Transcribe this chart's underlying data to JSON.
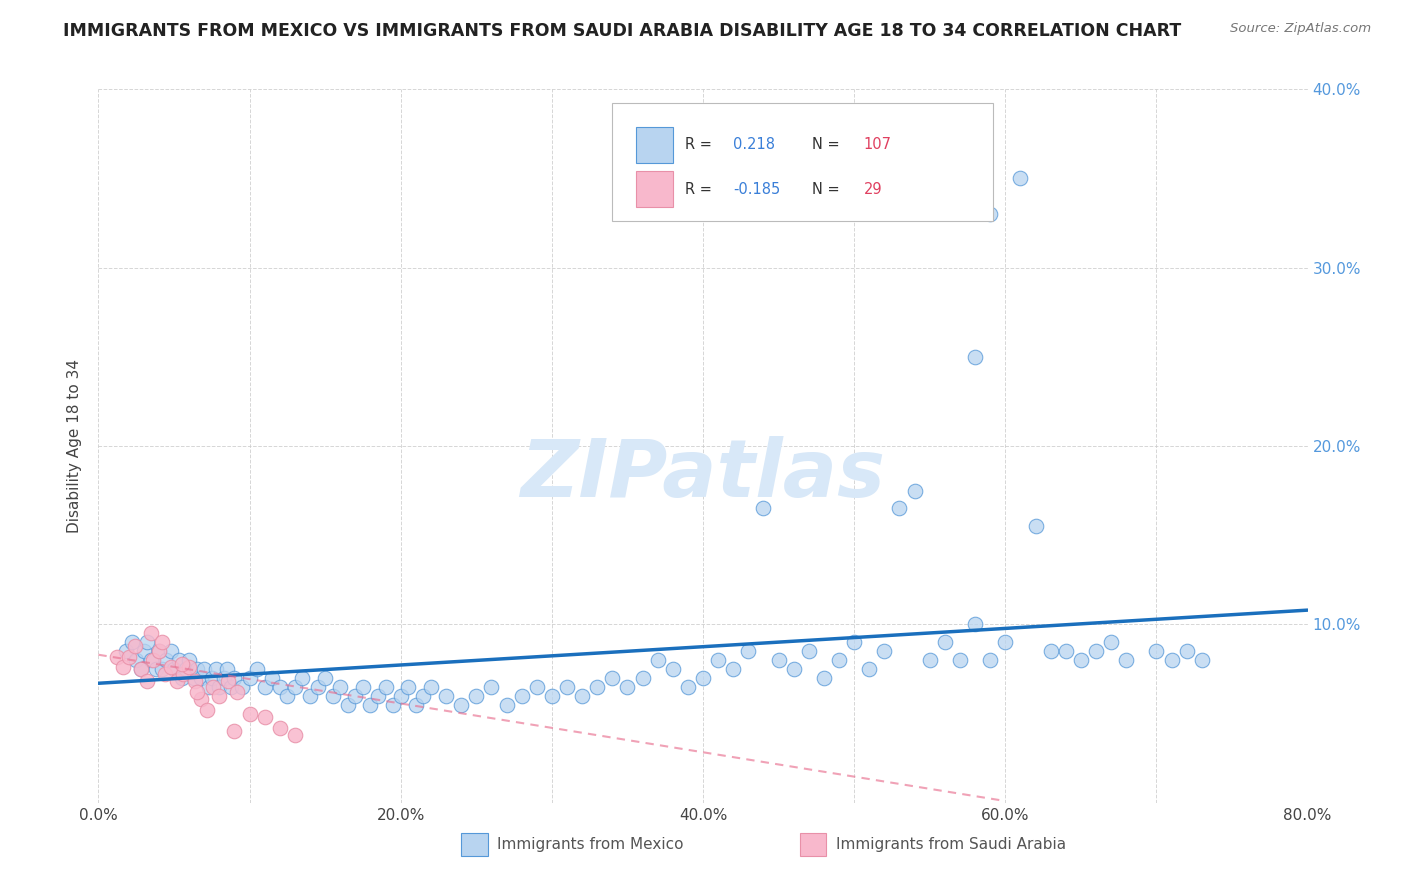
{
  "title": "IMMIGRANTS FROM MEXICO VS IMMIGRANTS FROM SAUDI ARABIA DISABILITY AGE 18 TO 34 CORRELATION CHART",
  "source_text": "Source: ZipAtlas.com",
  "ylabel": "Disability Age 18 to 34",
  "xlim": [
    0.0,
    0.8
  ],
  "ylim": [
    0.0,
    0.4
  ],
  "xtick_positions": [
    0.0,
    0.1,
    0.2,
    0.3,
    0.4,
    0.5,
    0.6,
    0.7,
    0.8
  ],
  "xticklabels": [
    "0.0%",
    "",
    "20.0%",
    "",
    "40.0%",
    "",
    "60.0%",
    "",
    "80.0%"
  ],
  "ytick_positions": [
    0.0,
    0.1,
    0.2,
    0.3,
    0.4
  ],
  "ytick_right_positions": [
    0.1,
    0.2,
    0.3,
    0.4
  ],
  "yticklabels_right": [
    "10.0%",
    "20.0%",
    "30.0%",
    "40.0%"
  ],
  "r_mexico": 0.218,
  "n_mexico": 107,
  "r_saudi": -0.185,
  "n_saudi": 29,
  "color_mexico_fill": "#b8d4f0",
  "color_mexico_edge": "#5598d8",
  "color_mexico_line": "#1a6fbd",
  "color_saudi_fill": "#f8b8cc",
  "color_saudi_edge": "#e890a8",
  "color_saudi_line": "#e87090",
  "watermark": "ZIPatlas",
  "watermark_color": "#d8e8f8",
  "background_color": "#ffffff",
  "grid_color": "#cccccc",
  "title_color": "#222222",
  "source_color": "#777777",
  "label_color": "#555555",
  "right_tick_color": "#5599dd",
  "mexico_line_x0": 0.0,
  "mexico_line_x1": 0.8,
  "mexico_line_y0": 0.067,
  "mexico_line_y1": 0.108,
  "saudi_line_x0": 0.0,
  "saudi_line_x1": 0.6,
  "saudi_line_y0": 0.083,
  "saudi_line_y1": 0.001,
  "mexico_x": [
    0.018,
    0.022,
    0.025,
    0.028,
    0.03,
    0.032,
    0.035,
    0.038,
    0.04,
    0.042,
    0.045,
    0.048,
    0.05,
    0.053,
    0.055,
    0.058,
    0.06,
    0.063,
    0.065,
    0.068,
    0.07,
    0.073,
    0.075,
    0.078,
    0.08,
    0.083,
    0.085,
    0.088,
    0.09,
    0.095,
    0.1,
    0.105,
    0.11,
    0.115,
    0.12,
    0.125,
    0.13,
    0.135,
    0.14,
    0.145,
    0.15,
    0.155,
    0.16,
    0.165,
    0.17,
    0.175,
    0.18,
    0.185,
    0.19,
    0.195,
    0.2,
    0.205,
    0.21,
    0.215,
    0.22,
    0.23,
    0.24,
    0.25,
    0.26,
    0.27,
    0.28,
    0.29,
    0.3,
    0.31,
    0.32,
    0.33,
    0.34,
    0.35,
    0.36,
    0.37,
    0.38,
    0.39,
    0.4,
    0.41,
    0.42,
    0.43,
    0.44,
    0.45,
    0.46,
    0.47,
    0.48,
    0.49,
    0.5,
    0.51,
    0.52,
    0.53,
    0.54,
    0.55,
    0.56,
    0.57,
    0.58,
    0.59,
    0.6,
    0.61,
    0.62,
    0.63,
    0.64,
    0.65,
    0.66,
    0.67,
    0.68,
    0.7,
    0.71,
    0.72,
    0.73,
    0.58,
    0.59
  ],
  "mexico_y": [
    0.085,
    0.09,
    0.08,
    0.075,
    0.085,
    0.09,
    0.08,
    0.075,
    0.085,
    0.075,
    0.08,
    0.085,
    0.075,
    0.08,
    0.07,
    0.075,
    0.08,
    0.07,
    0.075,
    0.07,
    0.075,
    0.065,
    0.07,
    0.075,
    0.065,
    0.07,
    0.075,
    0.065,
    0.07,
    0.065,
    0.07,
    0.075,
    0.065,
    0.07,
    0.065,
    0.06,
    0.065,
    0.07,
    0.06,
    0.065,
    0.07,
    0.06,
    0.065,
    0.055,
    0.06,
    0.065,
    0.055,
    0.06,
    0.065,
    0.055,
    0.06,
    0.065,
    0.055,
    0.06,
    0.065,
    0.06,
    0.055,
    0.06,
    0.065,
    0.055,
    0.06,
    0.065,
    0.06,
    0.065,
    0.06,
    0.065,
    0.07,
    0.065,
    0.07,
    0.08,
    0.075,
    0.065,
    0.07,
    0.08,
    0.075,
    0.085,
    0.165,
    0.08,
    0.075,
    0.085,
    0.07,
    0.08,
    0.09,
    0.075,
    0.085,
    0.165,
    0.175,
    0.08,
    0.09,
    0.08,
    0.1,
    0.08,
    0.09,
    0.35,
    0.155,
    0.085,
    0.085,
    0.08,
    0.085,
    0.09,
    0.08,
    0.085,
    0.08,
    0.085,
    0.08,
    0.25,
    0.33
  ],
  "saudi_x": [
    0.012,
    0.016,
    0.02,
    0.024,
    0.028,
    0.032,
    0.036,
    0.04,
    0.044,
    0.048,
    0.052,
    0.056,
    0.06,
    0.064,
    0.068,
    0.072,
    0.076,
    0.08,
    0.086,
    0.092,
    0.1,
    0.11,
    0.12,
    0.13,
    0.035,
    0.042,
    0.055,
    0.065,
    0.09
  ],
  "saudi_y": [
    0.082,
    0.076,
    0.082,
    0.088,
    0.075,
    0.068,
    0.08,
    0.085,
    0.072,
    0.076,
    0.068,
    0.072,
    0.076,
    0.068,
    0.058,
    0.052,
    0.065,
    0.06,
    0.068,
    0.062,
    0.05,
    0.048,
    0.042,
    0.038,
    0.095,
    0.09,
    0.078,
    0.062,
    0.04
  ]
}
